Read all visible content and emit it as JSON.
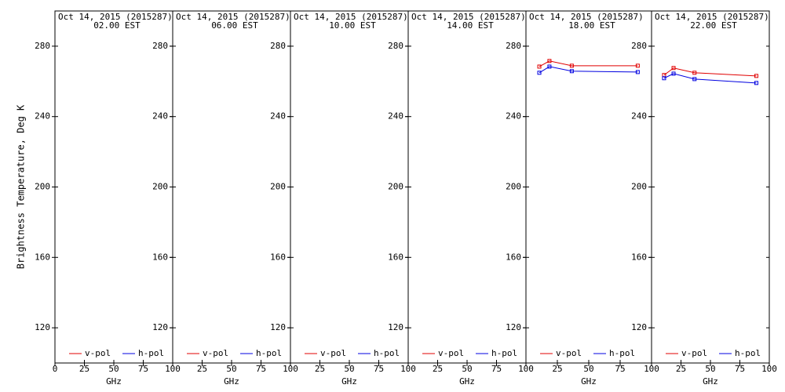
{
  "chart_data": [
    {
      "type": "line",
      "title": "Oct 14, 2015 (2015287)",
      "subtitle": "02.00 EST",
      "x_label": "GHz",
      "y_label": "Brightness Temperature, Deg K",
      "x": [
        10.65,
        18.7,
        36.5,
        89
      ],
      "series": [
        {
          "name": "v-pol",
          "color": "#e00000",
          "values": [
            null,
            null,
            null,
            null
          ]
        },
        {
          "name": "h-pol",
          "color": "#0000e0",
          "values": [
            null,
            null,
            null,
            null
          ]
        }
      ],
      "xlim": [
        0,
        100
      ],
      "xticks": [
        0,
        25,
        50,
        75,
        100
      ],
      "ylim": [
        100,
        300
      ],
      "yticks": [
        120,
        160,
        200,
        240,
        280
      ],
      "grid": false,
      "legend": "bottom"
    },
    {
      "type": "line",
      "title": "Oct 14, 2015 (2015287)",
      "subtitle": "06.00 EST",
      "x_label": "GHz",
      "x": [
        10.65,
        18.7,
        36.5,
        89
      ],
      "series": [
        {
          "name": "v-pol",
          "color": "#e00000",
          "values": [
            null,
            null,
            null,
            null
          ]
        },
        {
          "name": "h-pol",
          "color": "#0000e0",
          "values": [
            null,
            null,
            null,
            null
          ]
        }
      ],
      "xlim": [
        0,
        100
      ],
      "xticks": [
        25,
        50,
        75,
        100
      ],
      "ylim": [
        100,
        300
      ],
      "yticks": [
        120,
        160,
        200,
        240,
        280
      ],
      "grid": false,
      "legend": "bottom"
    },
    {
      "type": "line",
      "title": "Oct 14, 2015 (2015287)",
      "subtitle": "10.00 EST",
      "x_label": "GHz",
      "x": [
        10.65,
        18.7,
        36.5,
        89
      ],
      "series": [
        {
          "name": "v-pol",
          "color": "#e00000",
          "values": [
            null,
            null,
            null,
            null
          ]
        },
        {
          "name": "h-pol",
          "color": "#0000e0",
          "values": [
            null,
            null,
            null,
            null
          ]
        }
      ],
      "xlim": [
        0,
        100
      ],
      "xticks": [
        25,
        50,
        75,
        100
      ],
      "ylim": [
        100,
        300
      ],
      "yticks": [
        120,
        160,
        200,
        240,
        280
      ],
      "grid": false,
      "legend": "bottom"
    },
    {
      "type": "line",
      "title": "Oct 14, 2015 (2015287)",
      "subtitle": "14.00 EST",
      "x_label": "GHz",
      "x": [
        10.65,
        18.7,
        36.5,
        89
      ],
      "series": [
        {
          "name": "v-pol",
          "color": "#e00000",
          "values": [
            null,
            null,
            null,
            null
          ]
        },
        {
          "name": "h-pol",
          "color": "#0000e0",
          "values": [
            null,
            null,
            null,
            null
          ]
        }
      ],
      "xlim": [
        0,
        100
      ],
      "xticks": [
        25,
        50,
        75,
        100
      ],
      "ylim": [
        100,
        300
      ],
      "yticks": [
        120,
        160,
        200,
        240,
        280
      ],
      "grid": false,
      "legend": "bottom"
    },
    {
      "type": "line",
      "title": "Oct 14, 2015 (2015287)",
      "subtitle": "18.00 EST",
      "x_label": "GHz",
      "x": [
        10.65,
        18.7,
        36.5,
        89
      ],
      "series": [
        {
          "name": "v-pol",
          "color": "#e00000",
          "values": [
            268.4,
            271.6,
            268.9,
            268.9
          ]
        },
        {
          "name": "h-pol",
          "color": "#0000e0",
          "values": [
            264.9,
            268.4,
            265.8,
            265.3
          ]
        }
      ],
      "xlim": [
        0,
        100
      ],
      "xticks": [
        25,
        50,
        75,
        100
      ],
      "ylim": [
        100,
        300
      ],
      "yticks": [
        120,
        160,
        200,
        240,
        280
      ],
      "grid": false,
      "legend": "bottom"
    },
    {
      "type": "line",
      "title": "Oct 14, 2015 (2015287)",
      "subtitle": "22.00 EST",
      "x_label": "GHz",
      "x": [
        10.65,
        18.7,
        36.5,
        89
      ],
      "series": [
        {
          "name": "v-pol",
          "color": "#e00000",
          "values": [
            263.6,
            267.6,
            264.9,
            263.1
          ]
        },
        {
          "name": "h-pol",
          "color": "#0000e0",
          "values": [
            261.8,
            264.4,
            261.3,
            259.1
          ]
        }
      ],
      "xlim": [
        0,
        100
      ],
      "xticks": [
        25,
        50,
        75,
        100
      ],
      "ylim": [
        100,
        300
      ],
      "yticks": [
        120,
        160,
        200,
        240,
        280
      ],
      "grid": false,
      "legend": "bottom"
    }
  ]
}
